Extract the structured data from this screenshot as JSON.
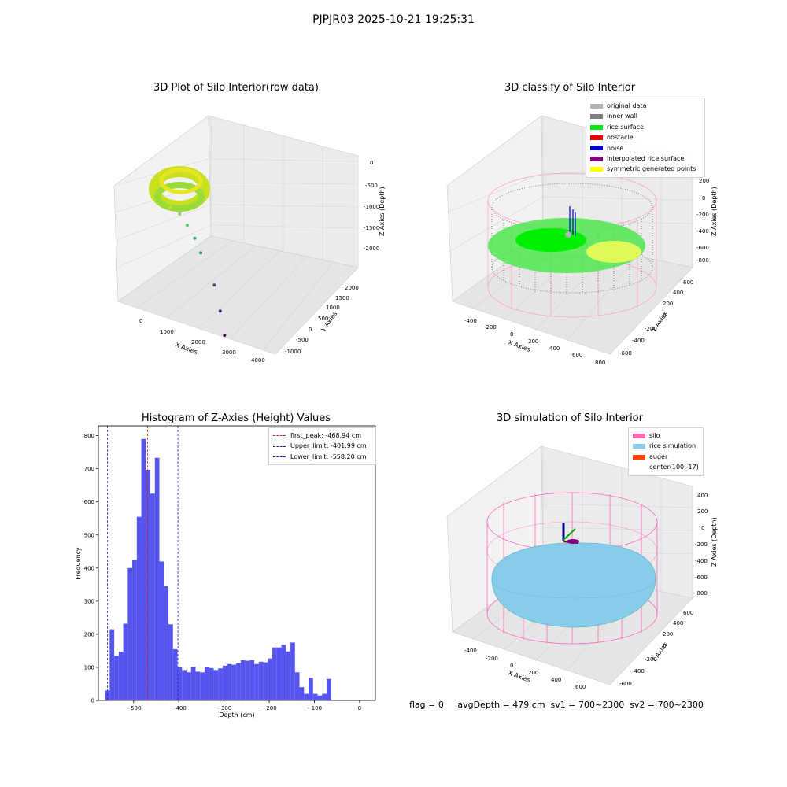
{
  "figure": {
    "suptitle": "PJPJR03 2025-10-21 19:25:31",
    "status_line": "flag = 0     avgDepth = 479 cm  sv1 = 700~2300  sv2 = 700~2300"
  },
  "colors": {
    "pane": "#f2f2f2",
    "grid": "#d6d6d6",
    "hist_bar": "#5555ee",
    "first_peak": "#dd2222",
    "limit": "#2222cc",
    "silo": "#ff69b4",
    "rice": "#87cdea"
  },
  "chart_data": [
    {
      "type": "scatter",
      "title": "3D Plot of Silo Interior(row data)",
      "xlabel": "X Axies",
      "ylabel": "Y Axies",
      "zlabel": "Z Axies (Depth)",
      "xticks": [
        "0",
        "1000",
        "2000",
        "3000",
        "4000"
      ],
      "yticks": [
        "-1000",
        "-500",
        "0",
        "500",
        "1000",
        "1500",
        "2000"
      ],
      "zticks": [
        "0",
        "-500",
        "-1000",
        "-1500",
        "-2000"
      ],
      "note_colormap": "viridis",
      "points": [
        {
          "x": 300,
          "y": 1500,
          "z": -300,
          "c": "#c8e020"
        },
        {
          "x": 600,
          "y": 1500,
          "z": -350,
          "c": "#86d549"
        },
        {
          "x": 900,
          "y": 1400,
          "z": -500,
          "c": "#52c569"
        },
        {
          "x": 1200,
          "y": 1300,
          "z": -700,
          "c": "#2db27d"
        },
        {
          "x": 1500,
          "y": 1100,
          "z": -900,
          "c": "#21918c"
        },
        {
          "x": 2200,
          "y": 600,
          "z": -1300,
          "c": "#3b528b"
        },
        {
          "x": 2600,
          "y": 200,
          "z": -1700,
          "c": "#482878"
        },
        {
          "x": 3000,
          "y": -300,
          "z": -2000,
          "c": "#440154"
        }
      ]
    },
    {
      "type": "scatter",
      "title": "3D classify of Silo Interior",
      "xlabel": "X Axies",
      "ylabel": "Y Axies",
      "zlabel": "Z Axies (Depth)",
      "xticks": [
        "-400",
        "-200",
        "0",
        "200",
        "400",
        "600",
        "800"
      ],
      "yticks": [
        "-600",
        "-400",
        "-200",
        "0",
        "200",
        "400",
        "600"
      ],
      "zticks": [
        "200",
        "0",
        "-200",
        "-400",
        "-600",
        "-800"
      ],
      "legend": [
        {
          "label": "original data",
          "color": "#b3b3b3"
        },
        {
          "label": "inner wall",
          "color": "#808080"
        },
        {
          "label": "rice surface",
          "color": "#00ee00"
        },
        {
          "label": "obstacle",
          "color": "#ee0000"
        },
        {
          "label": "noise",
          "color": "#0000dd"
        },
        {
          "label": "interpolated rice surface",
          "color": "#800080"
        },
        {
          "label": "symmetric generated points",
          "color": "#ffff00"
        }
      ]
    },
    {
      "type": "bar",
      "title": "Histogram of Z-Axies (Height) Values",
      "xlabel": "Depth (cm)",
      "ylabel": "Frequency",
      "xlim": [
        -578,
        35
      ],
      "ylim": [
        0,
        830
      ],
      "xticks": [
        -500,
        -400,
        -300,
        -200,
        -100,
        0
      ],
      "xtick_labels": [
        "−500",
        "−400",
        "−300",
        "−200",
        "−100",
        "0"
      ],
      "yticks": [
        0,
        100,
        200,
        300,
        400,
        500,
        600,
        700,
        800
      ],
      "bin_start": -563,
      "bin_width": 10,
      "values": [
        30,
        215,
        135,
        147,
        232,
        400,
        425,
        555,
        790,
        697,
        625,
        733,
        420,
        345,
        230,
        155,
        100,
        92,
        85,
        102,
        87,
        85,
        100,
        98,
        92,
        97,
        105,
        110,
        108,
        113,
        122,
        120,
        122,
        110,
        117,
        115,
        127,
        160,
        160,
        168,
        148,
        175,
        85,
        40,
        20,
        68,
        20,
        15,
        20,
        65
      ],
      "lines": [
        {
          "label": "first_peak: -468.94 cm",
          "x": -468.94,
          "color": "#dd2222"
        },
        {
          "label": "Upper_limit: -401.99 cm",
          "x": -401.99,
          "color": "#2222cc"
        },
        {
          "label": "Lower_limit: -558.20 cm",
          "x": -558.2,
          "color": "#2222cc"
        }
      ]
    },
    {
      "type": "scatter",
      "title": "3D simulation of Silo Interior",
      "xlabel": "X Axies",
      "ylabel": "Y Axies",
      "zlabel": "Z Axies (Depth)",
      "xticks": [
        "-400",
        "-200",
        "0",
        "200",
        "400",
        "600"
      ],
      "yticks": [
        "-600",
        "-400",
        "-200",
        "0",
        "200",
        "400",
        "600"
      ],
      "zticks": [
        "400",
        "200",
        "0",
        "-200",
        "-400",
        "-600",
        "-800"
      ],
      "legend": [
        {
          "label": "silo",
          "color": "#ff69b4"
        },
        {
          "label": "rice simulation",
          "color": "#87cdea"
        },
        {
          "label": "auger",
          "color": "#ff4500"
        },
        {
          "label": "center(100,-17)",
          "color": ""
        }
      ]
    }
  ]
}
